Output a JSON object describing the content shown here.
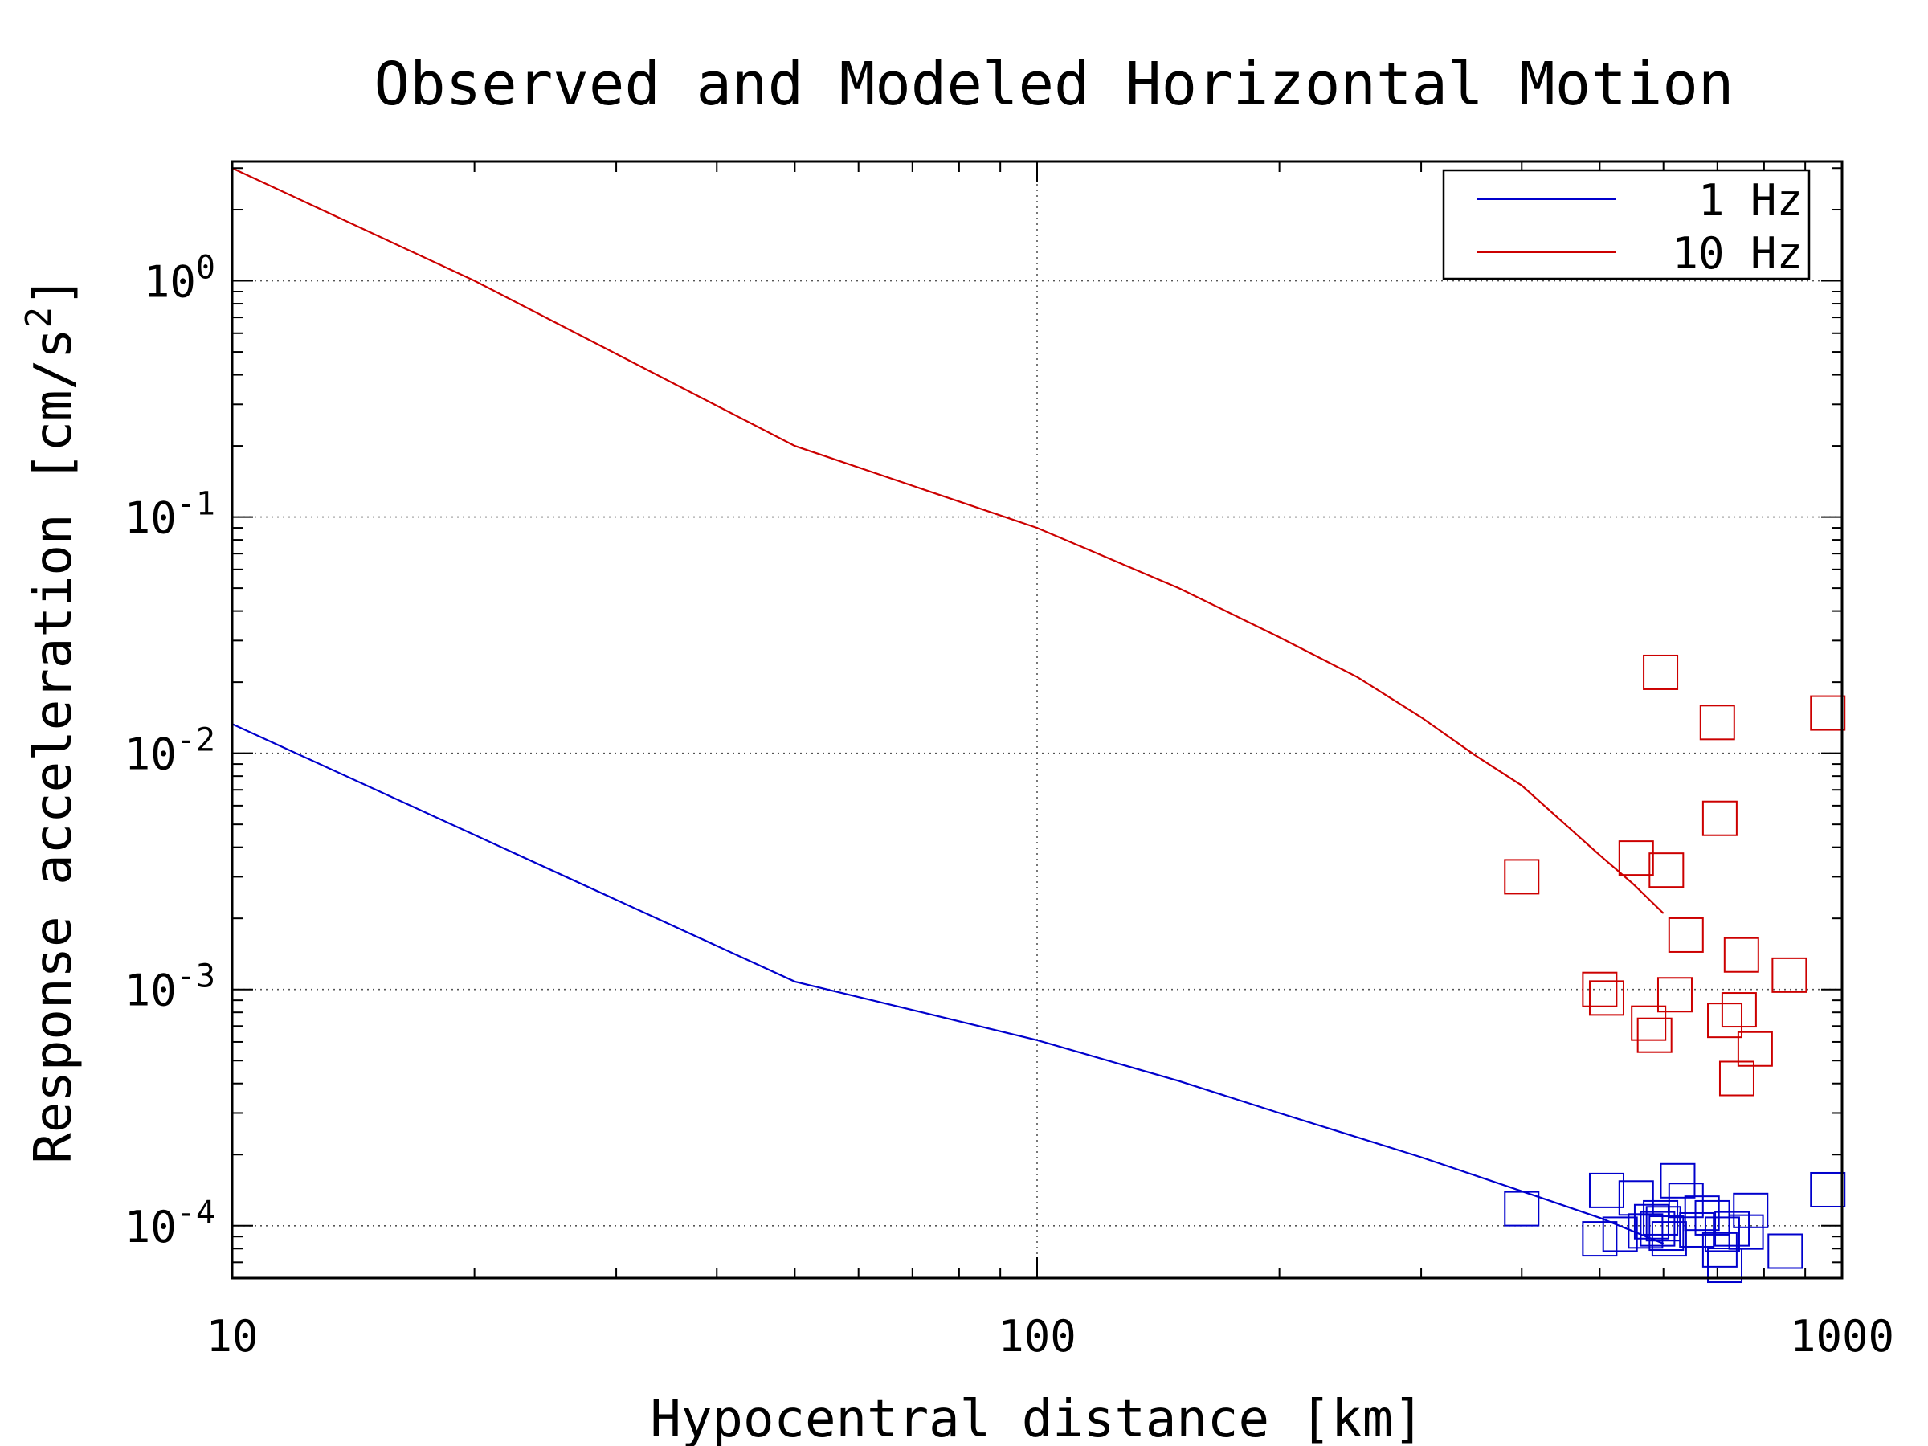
{
  "chart_data": {
    "type": "scatter",
    "title": "Observed and Modeled Horizontal Motion",
    "xlabel": "Hypocentral distance [km]",
    "ylabel_prefix": "Response acceleration [cm/s",
    "ylabel_sup": "2",
    "ylabel_suffix": "]",
    "xscale": "log",
    "yscale": "log",
    "xlim": [
      10,
      1000
    ],
    "ylim": [
      6e-05,
      3.2
    ],
    "x_ticks": [
      {
        "value": 10,
        "label": "10"
      },
      {
        "value": 100,
        "label": "100"
      },
      {
        "value": 1000,
        "label": "1000"
      }
    ],
    "y_ticks": [
      {
        "value": 1,
        "base": "10",
        "exp": "0"
      },
      {
        "value": 0.1,
        "base": "10",
        "exp": "-1"
      },
      {
        "value": 0.01,
        "base": "10",
        "exp": "-2"
      },
      {
        "value": 0.001,
        "base": "10",
        "exp": "-3"
      },
      {
        "value": 0.0001,
        "base": "10",
        "exp": "-4"
      }
    ],
    "grid": true,
    "legend_position": "top-right",
    "series": [
      {
        "name": "1 Hz",
        "color": "#0000cc",
        "line": {
          "x": [
            10,
            50,
            100,
            150,
            200,
            300,
            400,
            500,
            600
          ],
          "y": [
            0.0133,
            0.00108,
            0.00061,
            0.00041,
            0.0003,
            0.000195,
            0.00014,
            0.000108,
            8.4e-05
          ]
        },
        "observed": {
          "x": [
            400,
            500,
            510,
            530,
            555,
            570,
            580,
            590,
            595,
            600,
            605,
            610,
            625,
            640,
            660,
            670,
            690,
            705,
            710,
            715,
            730,
            760,
            770,
            850,
            960
          ],
          "y": [
            0.000118,
            8.8e-05,
            0.000141,
            9.2e-05,
            0.000131,
            9.5e-05,
            0.000104,
            9.7e-05,
            0.000108,
            0.000102,
            9.3e-05,
            8.8e-05,
            0.000155,
            0.000128,
            9.6e-05,
            0.000113,
            0.000108,
            7.9e-05,
            9.2e-05,
            6.8e-05,
            9.7e-05,
            9.4e-05,
            0.000116,
            7.8e-05,
            0.000142
          ]
        }
      },
      {
        "name": "10 Hz",
        "color": "#cc0000",
        "line": {
          "x": [
            10,
            20,
            50,
            100,
            150,
            200,
            250,
            300,
            350,
            400,
            450,
            500,
            550,
            600
          ],
          "y": [
            3.0,
            1.0,
            0.2,
            0.09,
            0.05,
            0.031,
            0.021,
            0.0142,
            0.0098,
            0.0073,
            0.0051,
            0.0037,
            0.0028,
            0.0021
          ]
        },
        "observed": {
          "x": [
            400,
            500,
            510,
            555,
            575,
            585,
            595,
            605,
            620,
            640,
            700,
            705,
            715,
            740,
            745,
            750,
            780,
            860,
            960
          ],
          "y": [
            0.003,
            0.001,
            0.00092,
            0.0036,
            0.00072,
            0.00064,
            0.022,
            0.0032,
            0.00095,
            0.0017,
            0.0135,
            0.0053,
            0.00074,
            0.00042,
            0.00082,
            0.0014,
            0.00056,
            0.00115,
            0.0148
          ]
        }
      }
    ]
  }
}
